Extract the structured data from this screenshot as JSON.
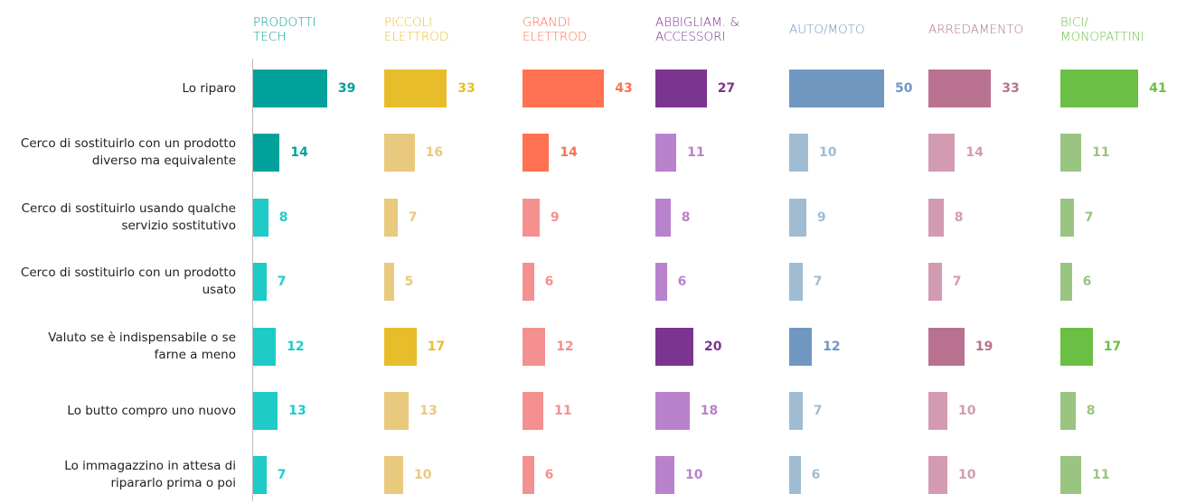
{
  "chart_data": {
    "type": "bar",
    "orientation": "horizontal",
    "layout": "small-multiples",
    "categories": [
      "Lo riparo",
      "Cerco di sostituirlo con un prodotto diverso ma equivalente",
      "Cerco di sostituirlo usando qualche servizio sostitutivo",
      "Cerco di sostituirlo con un prodotto usato",
      "Valuto se è indispensabile o se farne a meno",
      "Lo butto compro uno nuovo",
      "Lo immagazzino in attesa di ripararlo prima o poi"
    ],
    "series": [
      {
        "name": "PRODOTTI TECH",
        "color": "#00a19a",
        "values": [
          39,
          14,
          8,
          7,
          12,
          13,
          7
        ],
        "colors": [
          "#00a19a",
          "#00a19a",
          "#1ecbc6",
          "#1ecbc6",
          "#1ecbc6",
          "#1ecbc6",
          "#1ecbc6"
        ]
      },
      {
        "name": "PICCOLI ELETTROD.",
        "color": "#e8bd2c",
        "values": [
          33,
          16,
          7,
          5,
          17,
          13,
          10
        ],
        "colors": [
          "#e8bd2c",
          "#e8c97e",
          "#e8c97e",
          "#e8c97e",
          "#e8bd2c",
          "#e8c97e",
          "#e8c97e"
        ]
      },
      {
        "name": "GRANDI ELETTROD.",
        "color": "#ff7150",
        "values": [
          43,
          14,
          9,
          6,
          12,
          11,
          6
        ],
        "colors": [
          "#ff7150",
          "#ff7150",
          "#f49090",
          "#f49090",
          "#f49090",
          "#f49090",
          "#f49090"
        ]
      },
      {
        "name": "ABBIGLIAM. & ACCESSORI",
        "color": "#7b3590",
        "values": [
          27,
          11,
          8,
          6,
          20,
          18,
          10
        ],
        "colors": [
          "#7b3590",
          "#b982cc",
          "#b982cc",
          "#b982cc",
          "#7b3590",
          "#b982cc",
          "#b982cc"
        ]
      },
      {
        "name": "AUTO/MOTO",
        "color": "#7097c0",
        "values": [
          50,
          10,
          9,
          7,
          12,
          7,
          6
        ],
        "colors": [
          "#7097c0",
          "#9fbcd3",
          "#9fbcd3",
          "#9fbcd3",
          "#7097c0",
          "#9fbcd3",
          "#9fbcd3"
        ]
      },
      {
        "name": "ARREDAMENTO",
        "color": "#b8728f",
        "values": [
          33,
          14,
          8,
          7,
          19,
          10,
          10
        ],
        "colors": [
          "#b8728f",
          "#d29bb1",
          "#d29bb1",
          "#d29bb1",
          "#b8728f",
          "#d29bb1",
          "#d29bb1"
        ]
      },
      {
        "name": "BICI/ MONOPATTINI",
        "color": "#6cbf45",
        "values": [
          41,
          11,
          7,
          6,
          17,
          8,
          11
        ],
        "colors": [
          "#6cbf45",
          "#9ac481",
          "#9ac481",
          "#9ac481",
          "#6cbf45",
          "#9ac481",
          "#9ac481"
        ]
      }
    ]
  }
}
